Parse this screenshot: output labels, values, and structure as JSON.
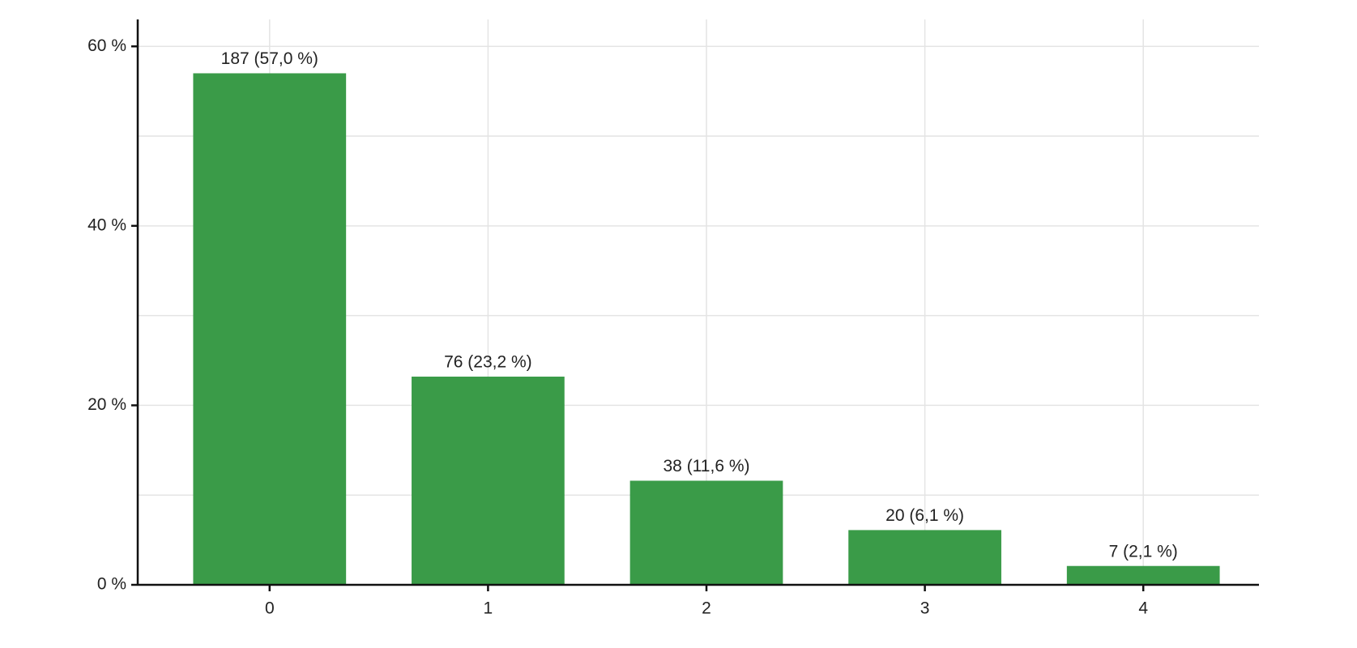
{
  "chart_data": {
    "type": "bar",
    "categories": [
      "0",
      "1",
      "2",
      "3",
      "4"
    ],
    "values": [
      57.0,
      23.2,
      11.6,
      6.1,
      2.1
    ],
    "value_labels": [
      "187 (57,0 %)",
      "76 (23,2 %)",
      "38 (11,6 %)",
      "20 (6,1 %)",
      "7 (2,1 %)"
    ],
    "color": "#3a9b48",
    "ylim": [
      0,
      63
    ],
    "yticks": [
      {
        "value": 0,
        "label": "0 %"
      },
      {
        "value": 20,
        "label": "20 %"
      },
      {
        "value": 40,
        "label": "40 %"
      },
      {
        "value": 60,
        "label": "60 %"
      }
    ],
    "minor_yticks": [
      10,
      30,
      50
    ],
    "grid": true
  }
}
